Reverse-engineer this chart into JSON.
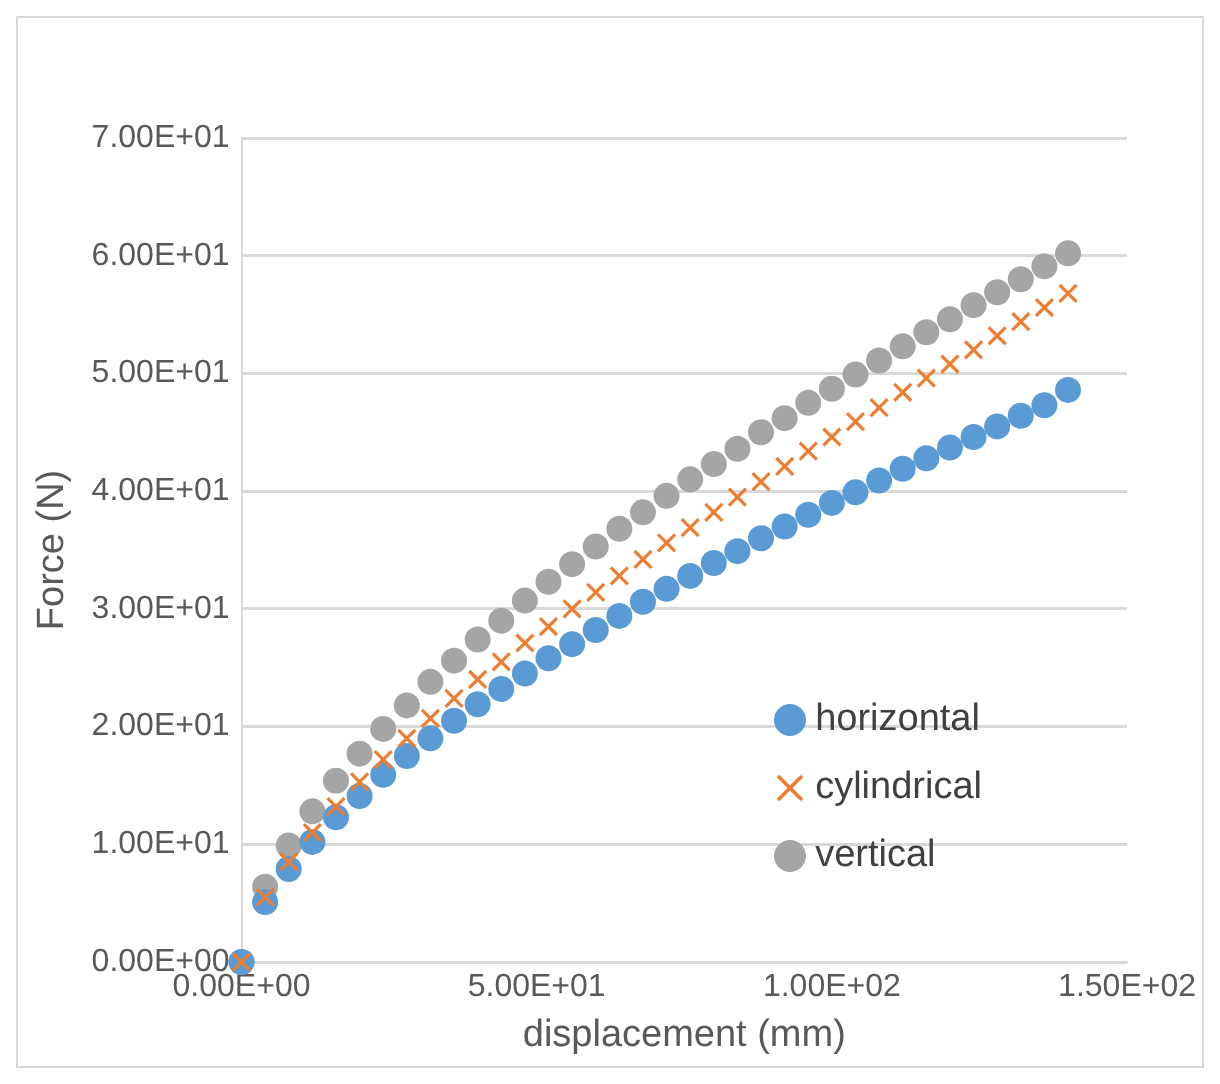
{
  "chart_data": {
    "type": "scatter",
    "xlabel": "displacement (mm)",
    "ylabel": "Force (N)",
    "x": [
      0,
      4,
      8,
      12,
      16,
      20,
      24,
      28,
      32,
      36,
      40,
      44,
      48,
      52,
      56,
      60,
      64,
      68,
      72,
      76,
      80,
      84,
      88,
      92,
      96,
      100,
      104,
      108,
      112,
      116,
      120,
      124,
      128,
      132,
      136,
      140
    ],
    "series": [
      {
        "name": "horizontal",
        "color": "#5b9bd5",
        "marker": "circle",
        "values": [
          0,
          5.1,
          7.9,
          10.2,
          12.3,
          14.1,
          15.9,
          17.5,
          19.0,
          20.5,
          21.9,
          23.2,
          24.5,
          25.8,
          27.0,
          28.2,
          29.4,
          30.6,
          31.7,
          32.8,
          33.9,
          34.9,
          36.0,
          37.0,
          38.0,
          39.0,
          39.9,
          40.9,
          41.9,
          42.8,
          43.7,
          44.6,
          45.5,
          46.4,
          47.3,
          48.6
        ]
      },
      {
        "name": "cylindrical",
        "color": "#ed7d31",
        "marker": "cross",
        "values": [
          0,
          5.5,
          8.5,
          11.0,
          13.2,
          15.3,
          17.2,
          19.0,
          20.7,
          22.4,
          24.0,
          25.5,
          27.1,
          28.5,
          30.0,
          31.4,
          32.8,
          34.2,
          35.6,
          36.9,
          38.2,
          39.5,
          40.8,
          42.1,
          43.4,
          44.6,
          45.9,
          47.1,
          48.4,
          49.6,
          50.8,
          52.0,
          53.2,
          54.4,
          55.6,
          56.8
        ]
      },
      {
        "name": "vertical",
        "color": "#a5a5a5",
        "marker": "circle",
        "values": [
          0,
          6.4,
          9.9,
          12.8,
          15.4,
          17.7,
          19.8,
          21.8,
          23.8,
          25.6,
          27.4,
          29.0,
          30.7,
          32.3,
          33.8,
          35.3,
          36.8,
          38.2,
          39.6,
          41.0,
          42.3,
          43.6,
          45.0,
          46.2,
          47.5,
          48.7,
          49.9,
          51.1,
          52.3,
          53.5,
          54.6,
          55.8,
          56.9,
          58.0,
          59.1,
          60.2
        ]
      }
    ],
    "xlim": [
      0,
      150
    ],
    "xticks": [
      {
        "value": 0,
        "label": "0.00E+00"
      },
      {
        "value": 50,
        "label": "5.00E+01"
      },
      {
        "value": 100,
        "label": "1.00E+02"
      },
      {
        "value": 150,
        "label": "1.50E+02"
      }
    ],
    "ylim": [
      0,
      70
    ],
    "yticks": [
      {
        "value": 0,
        "label": "0.00E+00"
      },
      {
        "value": 10,
        "label": "1.00E+01"
      },
      {
        "value": 20,
        "label": "2.00E+01"
      },
      {
        "value": 30,
        "label": "3.00E+01"
      },
      {
        "value": 40,
        "label": "4.00E+01"
      },
      {
        "value": 50,
        "label": "5.00E+01"
      },
      {
        "value": 60,
        "label": "6.00E+01"
      },
      {
        "value": 70,
        "label": "7.00E+01"
      }
    ],
    "grid": "y",
    "legend": "bottom right"
  }
}
